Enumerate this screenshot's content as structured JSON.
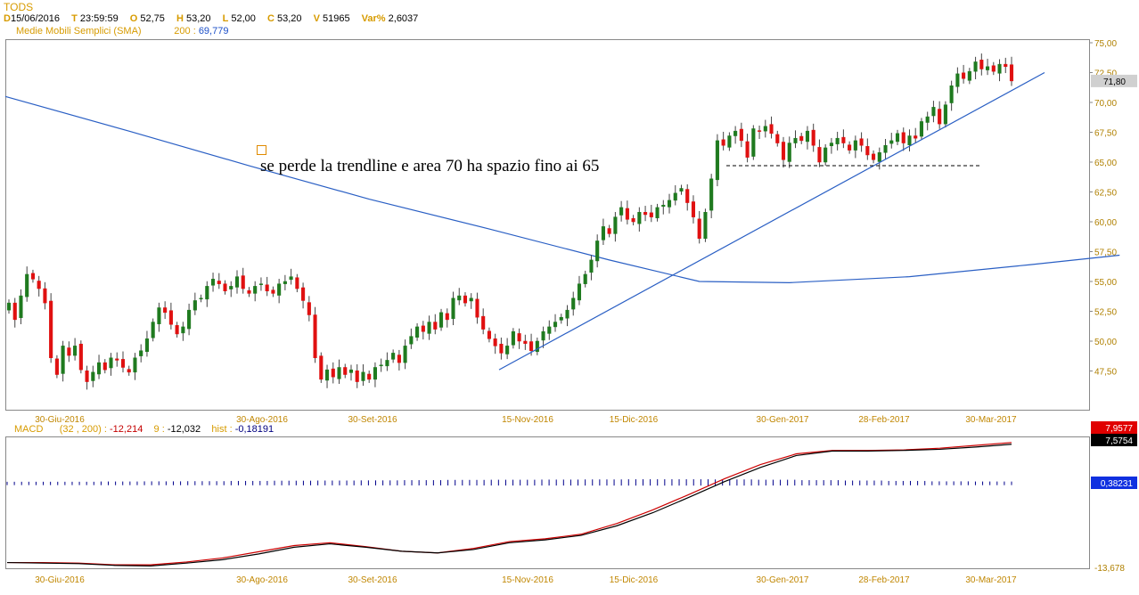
{
  "header": {
    "symbol": "TODS",
    "d_key": "D",
    "d_val": "15/06/2016",
    "t_key": "T",
    "t_val": "23:59:59",
    "o_key": "O",
    "o_val": "52,75",
    "h_key": "H",
    "h_val": "53,20",
    "l_key": "L",
    "l_val": "52,00",
    "c_key": "C",
    "c_val": "53,20",
    "v_key": "V",
    "v_val": "51965",
    "var_key": "Var%",
    "var_val": "2,6037",
    "sma_label": "Medie Mobili Semplici (SMA)",
    "sma_period": "200 :",
    "sma_value": "69,779"
  },
  "macd_header": {
    "label": "MACD",
    "params": "(32 , 200) :",
    "macd_value": "-12,214",
    "signal_period": "9 :",
    "signal_value": "-12,032",
    "hist_label": "hist :",
    "hist_value": "-0,18191"
  },
  "colors": {
    "up": "#1f7a1f",
    "down": "#e01010",
    "sma": "#2a5fc4",
    "trendline": "#2a5fc4",
    "grid_text": "#c08600",
    "macd_line": "#000000",
    "signal_line": "#cc0000",
    "hist": "#00008b"
  },
  "chart_data": [
    {
      "type": "candlestick",
      "title": "TODS",
      "x_tick_labels": [
        "30-Giu-2016",
        "30-Ago-2016",
        "30-Set-2016",
        "15-Nov-2016",
        "15-Dic-2016",
        "30-Gen-2017",
        "28-Feb-2017",
        "30-Mar-2017"
      ],
      "y_tick_labels": [
        "75,00",
        "72,50",
        "70,00",
        "67,50",
        "65,00",
        "62,50",
        "60,00",
        "57,50",
        "55,00",
        "52,50",
        "50,00",
        "47,50"
      ],
      "ylim": [
        45,
        75
      ],
      "last_price_label": "71,80",
      "close_prices": [
        53.2,
        51.8,
        53.8,
        55.6,
        55.2,
        54.4,
        53.2,
        48.6,
        47.2,
        49.6,
        48.8,
        49.6,
        47.6,
        46.6,
        47.4,
        48.2,
        47.6,
        48.6,
        48.4,
        47.8,
        47.4,
        48.6,
        49.2,
        50.2,
        51.6,
        52.8,
        52.4,
        51.4,
        50.6,
        51.2,
        52.6,
        53.4,
        53.6,
        54.6,
        55.2,
        54.8,
        54.2,
        54.6,
        55.4,
        54.4,
        54.0,
        54.6,
        54.8,
        54.2,
        54.0,
        54.8,
        55.0,
        55.4,
        54.4,
        53.4,
        52.2,
        48.6,
        46.8,
        47.6,
        47.0,
        47.8,
        47.2,
        47.6,
        46.6,
        47.4,
        46.8,
        47.8,
        48.0,
        48.4,
        49.0,
        48.2,
        49.6,
        50.4,
        51.2,
        50.8,
        51.6,
        51.0,
        52.4,
        51.8,
        53.6,
        53.8,
        53.2,
        53.6,
        52.0,
        51.0,
        50.2,
        49.6,
        49.0,
        49.6,
        50.8,
        50.0,
        49.8,
        49.2,
        50.0,
        50.8,
        51.2,
        51.6,
        52.0,
        52.6,
        53.6,
        54.8,
        55.6,
        56.8,
        58.4,
        59.6,
        59.0,
        60.4,
        61.2,
        60.2,
        60.0,
        60.8,
        60.6,
        60.4,
        61.2,
        61.4,
        61.8,
        62.4,
        62.8,
        61.6,
        60.4,
        58.6,
        60.8,
        63.6,
        66.8,
        66.4,
        67.2,
        67.6,
        66.8,
        65.4,
        67.8,
        67.6,
        68.0,
        67.4,
        66.6,
        65.2,
        66.6,
        67.0,
        66.8,
        67.6,
        66.4,
        65.0,
        66.2,
        66.6,
        67.0,
        66.6,
        66.0,
        66.8,
        66.4,
        65.6,
        65.2,
        65.8,
        66.4,
        66.8,
        67.4,
        66.6,
        67.2,
        67.0,
        68.4,
        68.8,
        69.6,
        68.2,
        69.8,
        71.4,
        72.4,
        72.0,
        72.6,
        73.4,
        72.8,
        73.0,
        72.6,
        73.2,
        73.0,
        71.8
      ],
      "series": [
        {
          "name": "Medie Mobili Semplici (SMA) 200",
          "x_index": [
            0,
            20,
            40,
            60,
            80,
            100,
            115,
            130,
            150,
            170,
            185
          ],
          "values": [
            70.5,
            67.6,
            64.7,
            61.9,
            59.4,
            56.8,
            55.0,
            54.9,
            55.4,
            56.4,
            57.2
          ]
        }
      ],
      "annotations": [
        {
          "text": "se perde la trendline e area 70 ha spazio fino ai 65"
        },
        {
          "type": "trendline",
          "from_index": 99,
          "from_value": 47.6,
          "to_index": 195,
          "to_value": 72.5
        },
        {
          "type": "horizontal_dashed",
          "value": 64.7
        }
      ]
    },
    {
      "type": "line",
      "title": "MACD",
      "y_tick_labels": [
        "7,9577",
        "7,5754",
        "0,38231",
        "-13,678"
      ],
      "series": [
        {
          "name": "MACD",
          "values": [
            -13.3,
            -13.4,
            -13.5,
            -13.8,
            -13.9,
            -13.4,
            -12.8,
            -11.8,
            -10.6,
            -10.0,
            -10.6,
            -11.3,
            -11.6,
            -11.0,
            -9.8,
            -9.3,
            -8.5,
            -6.8,
            -4.5,
            -1.8,
            1.0,
            3.5,
            5.6,
            6.4,
            6.4,
            6.5,
            6.7,
            7.1,
            7.6
          ]
        },
        {
          "name": "9",
          "values": [
            -13.3,
            -13.3,
            -13.4,
            -13.7,
            -13.7,
            -13.2,
            -12.5,
            -11.4,
            -10.3,
            -9.8,
            -10.5,
            -11.3,
            -11.6,
            -10.8,
            -9.6,
            -9.1,
            -8.3,
            -6.4,
            -4.0,
            -1.3,
            1.5,
            4.0,
            5.9,
            6.5,
            6.5,
            6.6,
            6.9,
            7.4,
            7.9
          ]
        },
        {
          "name": "hist",
          "values": [
            0.35,
            0.35,
            0.38,
            0.4,
            0.42,
            0.45,
            0.48,
            0.5,
            0.52,
            0.55,
            0.58,
            0.6,
            0.62,
            0.64,
            0.66,
            0.66,
            0.64,
            0.6,
            0.55,
            0.5,
            0.45,
            0.4,
            0.38
          ]
        }
      ]
    }
  ]
}
